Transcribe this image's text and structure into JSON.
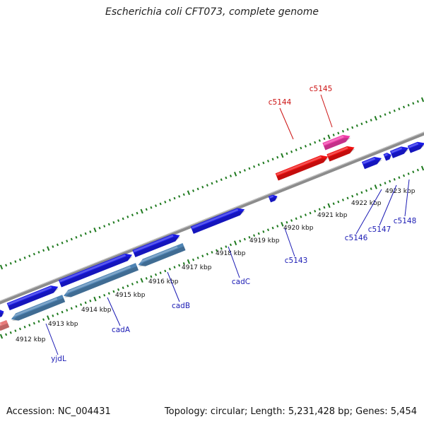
{
  "title": "Escherichia coli CFT073, complete genome",
  "footer": {
    "accession": "Accession: NC_004431",
    "summary": "Topology: circular; Length: 5,231,428 bp; Genes: 5,454"
  },
  "colors": {
    "forward_gene": "#1a1ae6",
    "reverse_gene": "#4f84b4",
    "rna_gene": "#f01010",
    "pseudo_gene": "#f03ca8",
    "backbone": "#8c8c8c",
    "tick": "#1f7a1f",
    "label_blue": "#1a1ab4",
    "label_red": "#cc1010"
  },
  "ticks": [
    {
      "label": "4912 kbp"
    },
    {
      "label": "4913 kbp"
    },
    {
      "label": "4914 kbp"
    },
    {
      "label": "4915 kbp"
    },
    {
      "label": "4916 kbp"
    },
    {
      "label": "4917 kbp"
    },
    {
      "label": "4918 kbp"
    },
    {
      "label": "4919 kbp"
    },
    {
      "label": "4920 kbp"
    },
    {
      "label": "4921 kbp"
    },
    {
      "label": "4922 kbp"
    },
    {
      "label": "4923 kbp"
    }
  ],
  "genes": [
    {
      "name": "yjdL",
      "strand": "reverse"
    },
    {
      "name": "cadA",
      "strand": "reverse"
    },
    {
      "name": "cadB",
      "strand": "reverse"
    },
    {
      "name": "cadC",
      "strand": "forward"
    },
    {
      "name": "c5143",
      "strand": "forward"
    },
    {
      "name": "c5144",
      "strand": "forward",
      "color": "red"
    },
    {
      "name": "c5145",
      "strand": "forward",
      "color": "pink"
    },
    {
      "name": "c5146",
      "strand": "forward"
    },
    {
      "name": "c5147",
      "strand": "forward"
    },
    {
      "name": "c5148",
      "strand": "forward"
    }
  ]
}
